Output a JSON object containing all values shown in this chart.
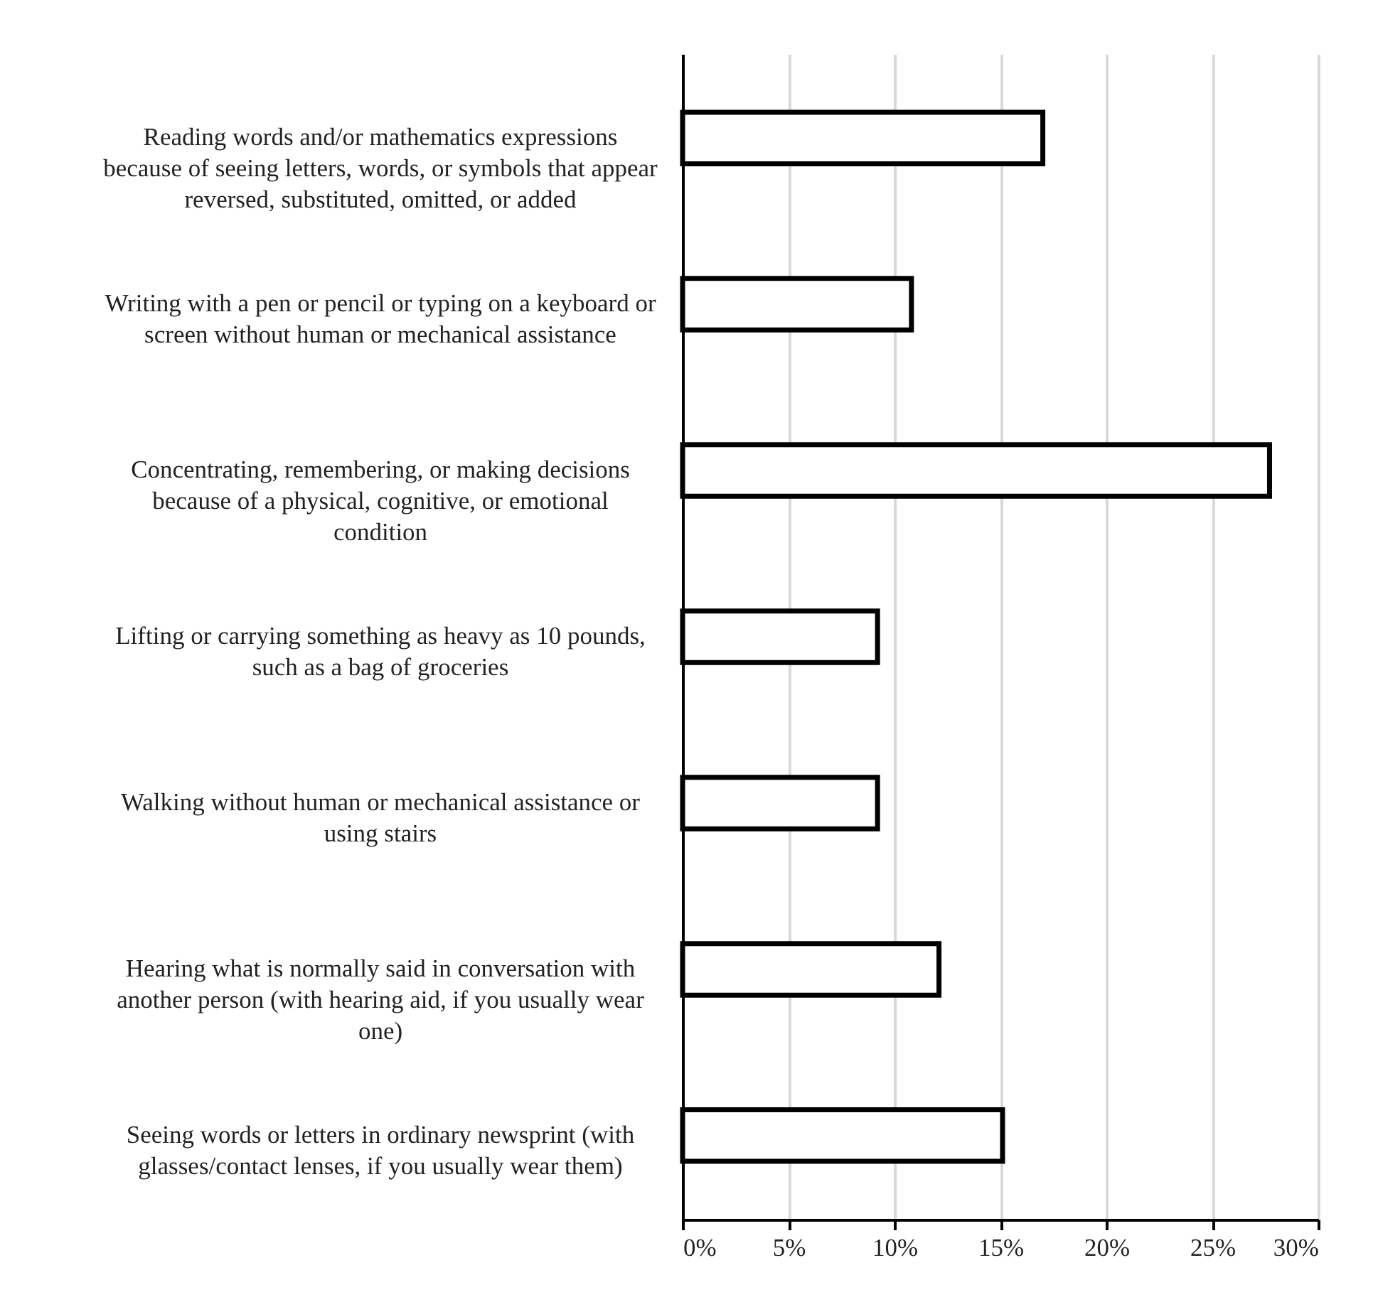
{
  "chart_data": {
    "type": "bar",
    "orientation": "horizontal",
    "categories": [
      "Reading words and/or mathematics expressions because of seeing letters, words, or symbols that appear reversed, substituted, omitted, or added",
      "Writing with a pen or pencil or typing on a keyboard or screen without human or mechanical assistance",
      "Concentrating, remembering, or making decisions because of a physical, cognitive, or emotional condition",
      "Lifting or carrying something as heavy as 10 pounds, such as a bag of groceries",
      "Walking without human or mechanical assistance or using stairs",
      "Hearing what is normally said in conversation with another person (with hearing aid, if you usually wear one)",
      "Seeing words or letters in ordinary newsprint (with glasses/contact lenses, if you usually wear them)"
    ],
    "values": [
      17.0,
      10.8,
      27.7,
      9.2,
      9.2,
      12.1,
      15.1
    ],
    "color": "#ffffff",
    "xlim": [
      0,
      30
    ],
    "xticks": [
      {
        "value": 0,
        "label": "0%"
      },
      {
        "value": 5,
        "label": "5%"
      },
      {
        "value": 10,
        "label": "10%"
      },
      {
        "value": 15,
        "label": "15%"
      },
      {
        "value": 20,
        "label": "20%"
      },
      {
        "value": 25,
        "label": "25%"
      },
      {
        "value": 30,
        "label": "30%"
      }
    ],
    "grid": "x"
  }
}
